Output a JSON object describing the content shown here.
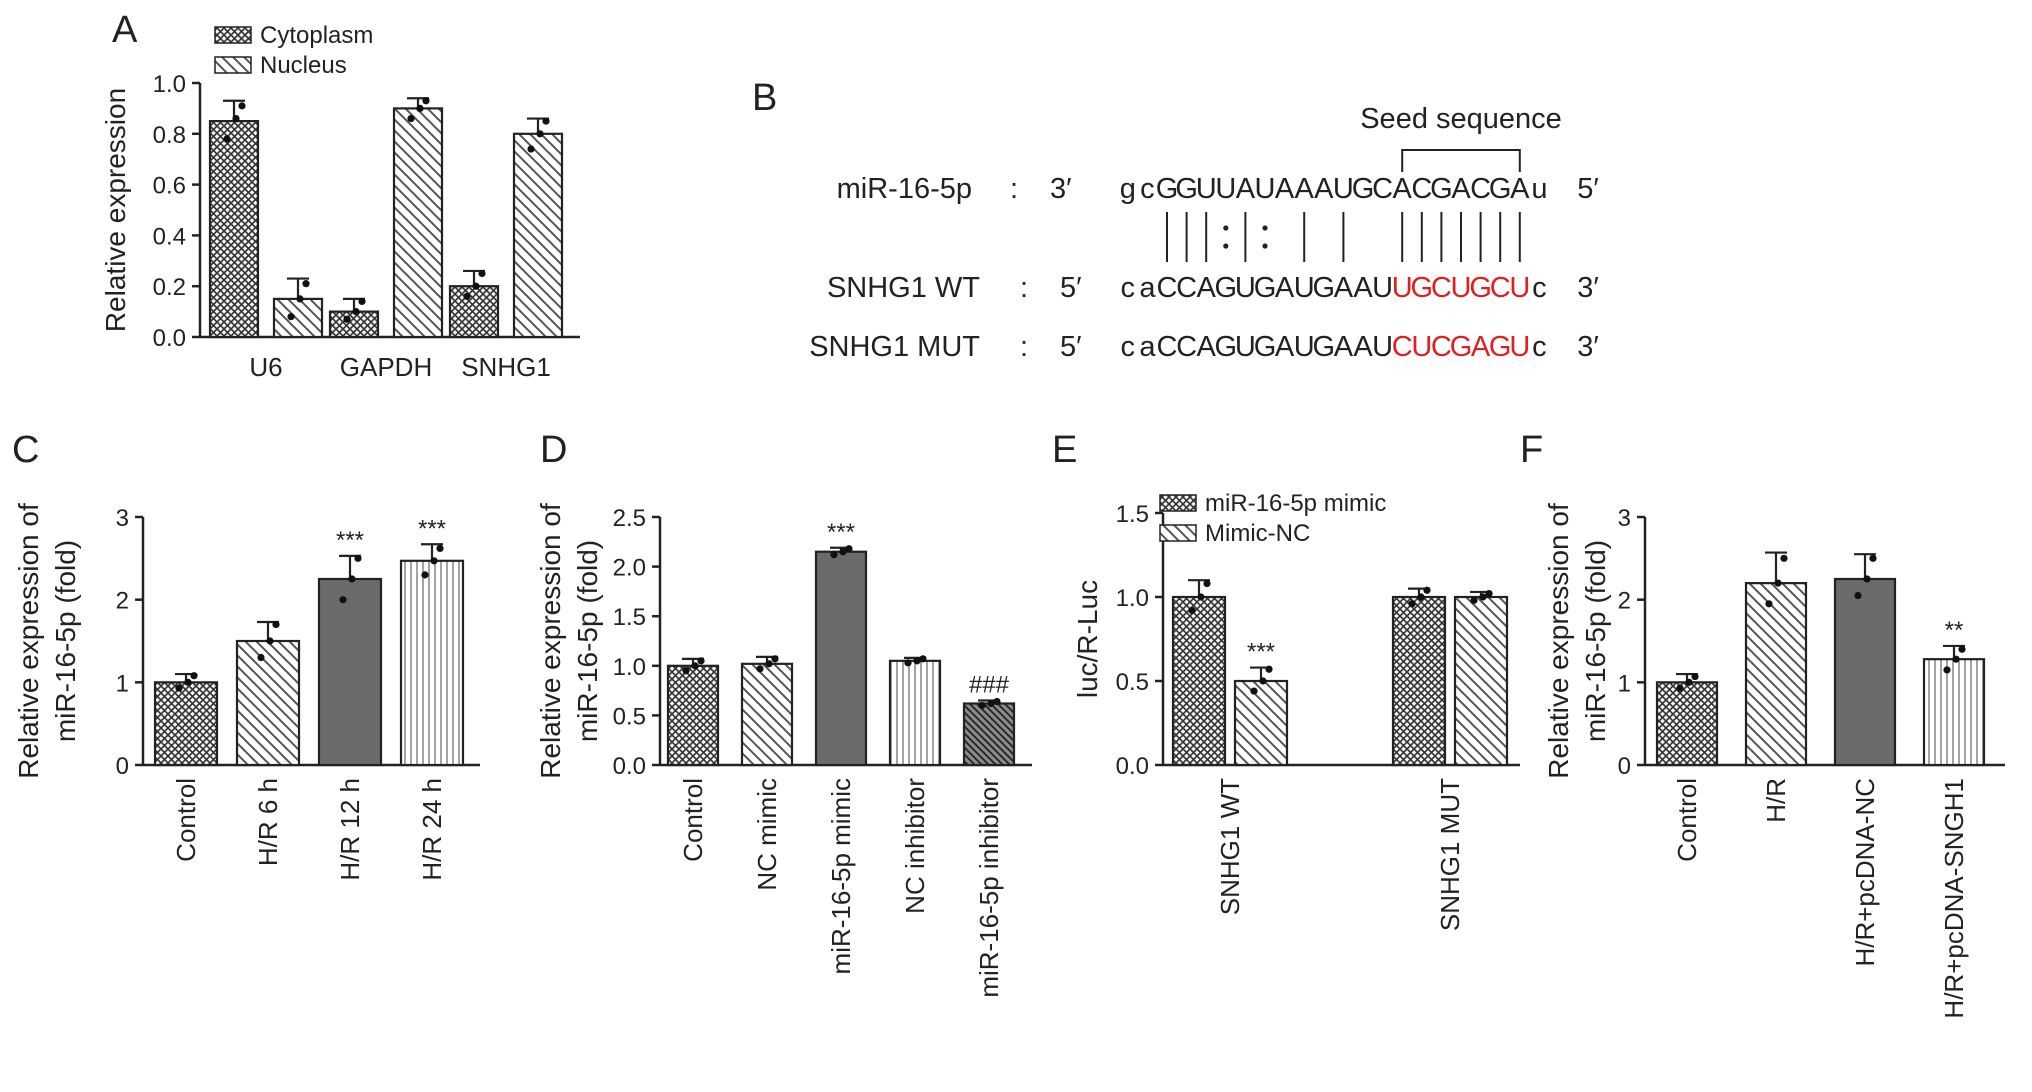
{
  "chart_data": [
    {
      "panel": "A",
      "type": "bar",
      "categories": [
        "U6",
        "GAPDH",
        "SNHG1"
      ],
      "ylabel": "Relative expression",
      "ylim": [
        0,
        1.0
      ],
      "yticks": [
        "0.0",
        "0.2",
        "0.4",
        "0.6",
        "0.8",
        "1.0"
      ],
      "legend_position": "top-left",
      "series": [
        {
          "name": "Cytoplasm",
          "pattern": "crosshatch",
          "values": [
            0.85,
            0.1,
            0.2
          ],
          "errors": [
            0.08,
            0.05,
            0.06
          ],
          "points": [
            [
              0.78,
              0.86,
              0.91
            ],
            [
              0.07,
              0.1,
              0.14
            ],
            [
              0.16,
              0.2,
              0.25
            ]
          ]
        },
        {
          "name": "Nucleus",
          "pattern": "diagonal",
          "values": [
            0.15,
            0.9,
            0.8
          ],
          "errors": [
            0.08,
            0.04,
            0.06
          ],
          "points": [
            [
              0.08,
              0.15,
              0.21
            ],
            [
              0.86,
              0.9,
              0.93
            ],
            [
              0.74,
              0.8,
              0.85
            ]
          ]
        }
      ],
      "annotations": []
    },
    {
      "panel": "C",
      "type": "bar",
      "categories": [
        "Control",
        "H/R 6 h",
        "H/R 12 h",
        "H/R 24 h"
      ],
      "ylabel_lines": [
        "Relative expression of",
        "miR-16-5p (fold)"
      ],
      "ylim": [
        0,
        3
      ],
      "yticks": [
        "0",
        "1",
        "2",
        "3"
      ],
      "patterns": [
        "crosshatch",
        "diagonal",
        "solid",
        "vertical"
      ],
      "values": [
        1.0,
        1.5,
        2.25,
        2.47
      ],
      "errors": [
        0.1,
        0.23,
        0.28,
        0.2
      ],
      "points": [
        [
          0.93,
          1.0,
          1.08
        ],
        [
          1.3,
          1.5,
          1.7
        ],
        [
          2.0,
          2.25,
          2.5
        ],
        [
          2.3,
          2.47,
          2.62
        ]
      ],
      "annotations": [
        "",
        "",
        "***",
        "***"
      ]
    },
    {
      "panel": "D",
      "type": "bar",
      "categories": [
        "Control",
        "NC mimic",
        "miR-16-5p mimic",
        "NC inhibitor",
        "miR-16-5p inhibitor"
      ],
      "ylabel_lines": [
        "Relative expression of",
        "miR-16-5p (fold)"
      ],
      "ylim": [
        0,
        2.5
      ],
      "yticks": [
        "0.0",
        "0.5",
        "1.0",
        "1.5",
        "2.0",
        "2.5"
      ],
      "patterns": [
        "crosshatch",
        "diagonal",
        "solid",
        "vertical",
        "diagonal-dark"
      ],
      "values": [
        1.0,
        1.02,
        2.15,
        1.05,
        0.62
      ],
      "errors": [
        0.07,
        0.07,
        0.04,
        0.03,
        0.03
      ],
      "points": [
        [
          0.95,
          1.0,
          1.05
        ],
        [
          0.97,
          1.02,
          1.07
        ],
        [
          2.12,
          2.15,
          2.18
        ],
        [
          1.03,
          1.05,
          1.07
        ],
        [
          0.6,
          0.62,
          0.64
        ]
      ],
      "annotations": [
        "",
        "",
        "***",
        "",
        "###"
      ]
    },
    {
      "panel": "E",
      "type": "bar",
      "categories": [
        "SNHG1 WT",
        "SNHG1 MUT"
      ],
      "ylabel": "luc/R-Luc",
      "ylim": [
        0,
        1.5
      ],
      "yticks": [
        "0.0",
        "0.5",
        "1.0",
        "1.5"
      ],
      "legend_position": "top-left",
      "series": [
        {
          "name": "miR-16-5p mimic",
          "pattern": "crosshatch",
          "values": [
            1.0,
            1.0
          ],
          "errors": [
            0.1,
            0.05
          ],
          "points": [
            [
              0.92,
              1.0,
              1.08
            ],
            [
              0.96,
              1.0,
              1.04
            ]
          ]
        },
        {
          "name": "Mimic-NC",
          "pattern": "diagonal",
          "values": [
            0.5,
            1.0
          ],
          "errors": [
            0.08,
            0.03
          ],
          "points": [
            [
              0.44,
              0.5,
              0.57
            ],
            [
              0.98,
              1.0,
              1.02
            ]
          ]
        }
      ],
      "annotations": [
        "***",
        ""
      ]
    },
    {
      "panel": "F",
      "type": "bar",
      "categories": [
        "Control",
        "H/R",
        "H/R+pcDNA-NC",
        "H/R+pcDNA-SNGH1"
      ],
      "ylabel_lines": [
        "Relative expression of",
        "miR-16-5p (fold)"
      ],
      "ylim": [
        0,
        3
      ],
      "yticks": [
        "0",
        "1",
        "2",
        "3"
      ],
      "patterns": [
        "crosshatch",
        "diagonal",
        "solid",
        "vertical"
      ],
      "values": [
        1.0,
        2.2,
        2.25,
        1.28
      ],
      "errors": [
        0.1,
        0.37,
        0.3,
        0.16
      ],
      "points": [
        [
          0.93,
          1.0,
          1.07
        ],
        [
          1.95,
          2.2,
          2.5
        ],
        [
          2.05,
          2.25,
          2.5
        ],
        [
          1.15,
          1.28,
          1.4
        ]
      ],
      "annotations": [
        "",
        "",
        "",
        "**"
      ]
    }
  ],
  "panelB": {
    "letter": "B",
    "seed_label": "Seed sequence",
    "rows": [
      {
        "name": "miR-16-5p",
        "colon": ":",
        "left_end": "3′",
        "seq": "gcGGUUAUAAAUGCACGACGAu",
        "right_end": "5′",
        "red_start": -1,
        "red_end": -1
      },
      {
        "name": "SNHG1 WT",
        "colon": ":",
        "left_end": "5′",
        "seq": "caCCAGUGAUGAAUUGCUGCUc",
        "right_end": "3′",
        "red_start": 14,
        "red_end": 21
      },
      {
        "name": "SNHG1 MUT",
        "colon": ":",
        "left_end": "5′",
        "seq": "caCCAGUGAUGAAUCUCGAGUc",
        "right_end": "3′",
        "red_start": 14,
        "red_end": 21
      }
    ],
    "pairing": [
      " ",
      " ",
      "|",
      "|",
      "|",
      ":",
      "|",
      ":",
      " ",
      "|",
      " ",
      "|",
      " ",
      " ",
      "|",
      "|",
      "|",
      "|",
      "|",
      "|",
      "|",
      " "
    ],
    "highlight_color": "#e02020"
  },
  "colors": {
    "solid": "#6b6b6b",
    "line": "#222222"
  }
}
